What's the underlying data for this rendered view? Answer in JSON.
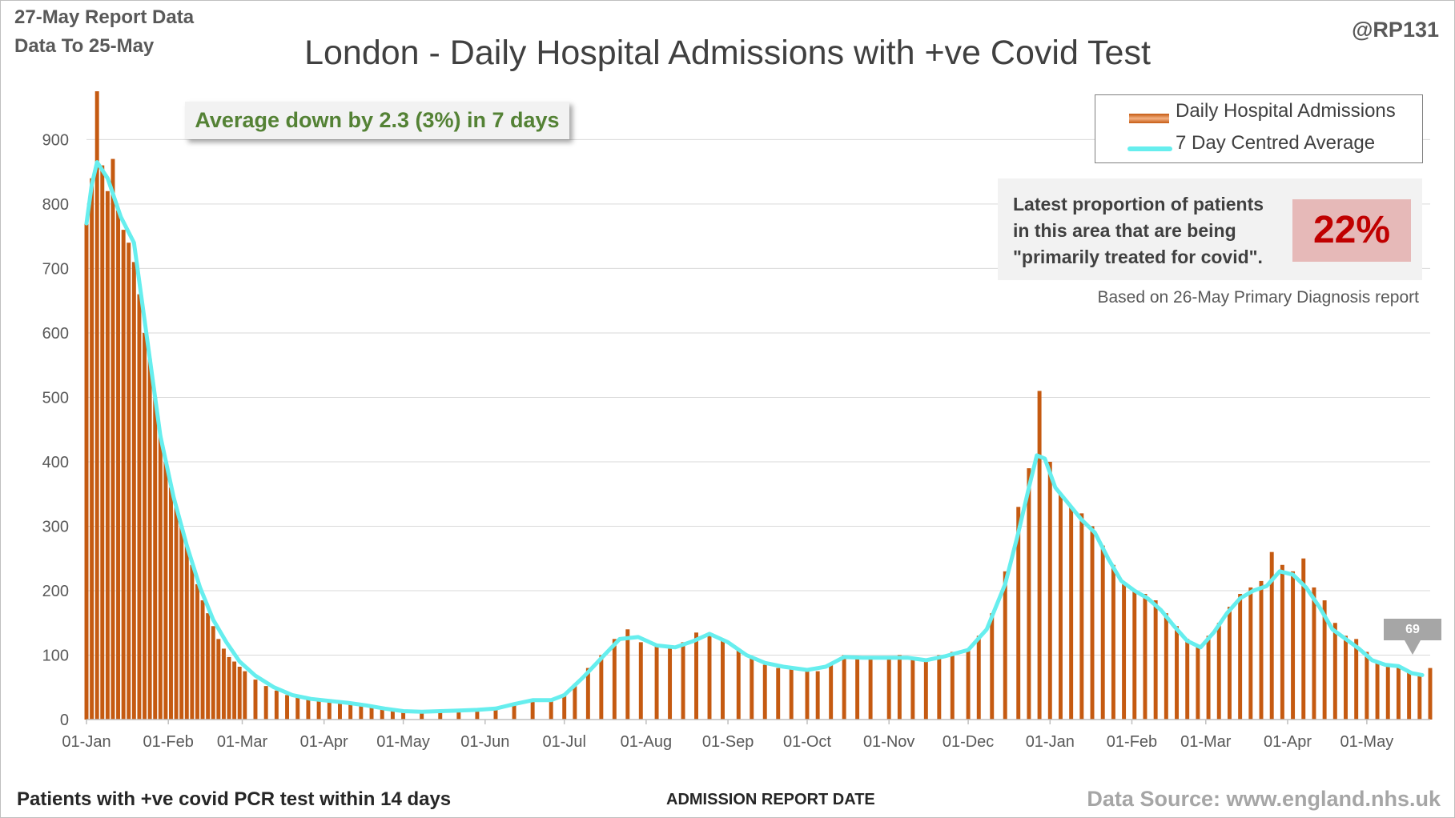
{
  "header": {
    "report_line": "27-May Report Data",
    "data_line": "Data To 25-May",
    "handle": "@RP131"
  },
  "footer": {
    "left": "Patients with +ve covid PCR test within 14 days",
    "middle": "ADMISSION REPORT DATE",
    "right": "Data Source: www.england.nhs.uk"
  },
  "annotations": {
    "avg_change": "Average down by 2.3 (3%) in 7 days",
    "proportion_text": "Latest proportion of patients in this area that are being \"primarily treated for covid\".",
    "proportion_value": "22%",
    "proportion_source": "Based on 26-May Primary Diagnosis report",
    "latest_value": "69"
  },
  "colors": {
    "bar": "#c55a11",
    "bar_highlight": "#f4b183",
    "average_line": "#66eeee",
    "avg_text": "#548235",
    "proportion_text": "#c00000",
    "grid": "#d9d9d9"
  },
  "chart_data": {
    "type": "bar",
    "title": "London - Daily Hospital Admissions with +ve Covid Test",
    "xlabel": "ADMISSION REPORT DATE",
    "ylabel": "",
    "ylim": [
      0,
      980
    ],
    "yticks": [
      0,
      100,
      200,
      300,
      400,
      500,
      600,
      700,
      800,
      900
    ],
    "grid": true,
    "legend_position": "top-right",
    "x_start": "2021-01-01",
    "x_end": "2022-05-25",
    "xtick_labels": [
      {
        "date": "2021-01-01",
        "label": "01-Jan"
      },
      {
        "date": "2021-02-01",
        "label": "01-Feb"
      },
      {
        "date": "2021-03-01",
        "label": "01-Mar"
      },
      {
        "date": "2021-04-01",
        "label": "01-Apr"
      },
      {
        "date": "2021-05-01",
        "label": "01-May"
      },
      {
        "date": "2021-06-01",
        "label": "01-Jun"
      },
      {
        "date": "2021-07-01",
        "label": "01-Jul"
      },
      {
        "date": "2021-08-01",
        "label": "01-Aug"
      },
      {
        "date": "2021-09-01",
        "label": "01-Sep"
      },
      {
        "date": "2021-10-01",
        "label": "01-Oct"
      },
      {
        "date": "2021-11-01",
        "label": "01-Nov"
      },
      {
        "date": "2021-12-01",
        "label": "01-Dec"
      },
      {
        "date": "2022-01-01",
        "label": "01-Jan"
      },
      {
        "date": "2022-02-01",
        "label": "01-Feb"
      },
      {
        "date": "2022-03-01",
        "label": "01-Mar"
      },
      {
        "date": "2022-04-01",
        "label": "01-Apr"
      },
      {
        "date": "2022-05-01",
        "label": "01-May"
      }
    ],
    "series": [
      {
        "name": "Daily Hospital Admissions",
        "kind": "bar",
        "points": [
          [
            "2021-01-01",
            770
          ],
          [
            "2021-01-03",
            840
          ],
          [
            "2021-01-05",
            975
          ],
          [
            "2021-01-07",
            860
          ],
          [
            "2021-01-09",
            820
          ],
          [
            "2021-01-11",
            870
          ],
          [
            "2021-01-13",
            790
          ],
          [
            "2021-01-15",
            760
          ],
          [
            "2021-01-17",
            740
          ],
          [
            "2021-01-19",
            710
          ],
          [
            "2021-01-21",
            660
          ],
          [
            "2021-01-23",
            600
          ],
          [
            "2021-01-25",
            560
          ],
          [
            "2021-01-27",
            500
          ],
          [
            "2021-01-29",
            440
          ],
          [
            "2021-01-31",
            400
          ],
          [
            "2021-02-02",
            360
          ],
          [
            "2021-02-04",
            330
          ],
          [
            "2021-02-06",
            300
          ],
          [
            "2021-02-08",
            270
          ],
          [
            "2021-02-10",
            240
          ],
          [
            "2021-02-12",
            210
          ],
          [
            "2021-02-14",
            185
          ],
          [
            "2021-02-16",
            165
          ],
          [
            "2021-02-18",
            145
          ],
          [
            "2021-02-20",
            125
          ],
          [
            "2021-02-22",
            110
          ],
          [
            "2021-02-24",
            97
          ],
          [
            "2021-02-26",
            90
          ],
          [
            "2021-02-28",
            82
          ],
          [
            "2021-03-02",
            75
          ],
          [
            "2021-03-06",
            62
          ],
          [
            "2021-03-10",
            52
          ],
          [
            "2021-03-14",
            45
          ],
          [
            "2021-03-18",
            38
          ],
          [
            "2021-03-22",
            34
          ],
          [
            "2021-03-26",
            31
          ],
          [
            "2021-03-30",
            29
          ],
          [
            "2021-04-03",
            27
          ],
          [
            "2021-04-07",
            25
          ],
          [
            "2021-04-11",
            23
          ],
          [
            "2021-04-15",
            21
          ],
          [
            "2021-04-19",
            18
          ],
          [
            "2021-04-23",
            17
          ],
          [
            "2021-04-27",
            15
          ],
          [
            "2021-05-01",
            13
          ],
          [
            "2021-05-08",
            12
          ],
          [
            "2021-05-15",
            13
          ],
          [
            "2021-05-22",
            14
          ],
          [
            "2021-05-29",
            15
          ],
          [
            "2021-06-05",
            18
          ],
          [
            "2021-06-12",
            25
          ],
          [
            "2021-06-19",
            30
          ],
          [
            "2021-06-26",
            32
          ],
          [
            "2021-07-01",
            40
          ],
          [
            "2021-07-05",
            55
          ],
          [
            "2021-07-10",
            80
          ],
          [
            "2021-07-15",
            100
          ],
          [
            "2021-07-20",
            125
          ],
          [
            "2021-07-25",
            140
          ],
          [
            "2021-07-30",
            120
          ],
          [
            "2021-08-05",
            115
          ],
          [
            "2021-08-10",
            110
          ],
          [
            "2021-08-15",
            120
          ],
          [
            "2021-08-20",
            135
          ],
          [
            "2021-08-25",
            130
          ],
          [
            "2021-08-30",
            125
          ],
          [
            "2021-09-05",
            110
          ],
          [
            "2021-09-10",
            95
          ],
          [
            "2021-09-15",
            85
          ],
          [
            "2021-09-20",
            80
          ],
          [
            "2021-09-25",
            78
          ],
          [
            "2021-10-01",
            75
          ],
          [
            "2021-10-05",
            75
          ],
          [
            "2021-10-10",
            85
          ],
          [
            "2021-10-15",
            100
          ],
          [
            "2021-10-20",
            98
          ],
          [
            "2021-10-25",
            95
          ],
          [
            "2021-11-01",
            98
          ],
          [
            "2021-11-05",
            100
          ],
          [
            "2021-11-10",
            95
          ],
          [
            "2021-11-15",
            90
          ],
          [
            "2021-11-20",
            100
          ],
          [
            "2021-11-25",
            105
          ],
          [
            "2021-12-01",
            110
          ],
          [
            "2021-12-05",
            130
          ],
          [
            "2021-12-10",
            165
          ],
          [
            "2021-12-15",
            230
          ],
          [
            "2021-12-20",
            330
          ],
          [
            "2021-12-24",
            390
          ],
          [
            "2021-12-28",
            510
          ],
          [
            "2022-01-01",
            400
          ],
          [
            "2022-01-05",
            350
          ],
          [
            "2022-01-09",
            330
          ],
          [
            "2022-01-13",
            320
          ],
          [
            "2022-01-17",
            300
          ],
          [
            "2022-01-21",
            270
          ],
          [
            "2022-01-25",
            240
          ],
          [
            "2022-01-29",
            210
          ],
          [
            "2022-02-02",
            200
          ],
          [
            "2022-02-06",
            195
          ],
          [
            "2022-02-10",
            185
          ],
          [
            "2022-02-14",
            165
          ],
          [
            "2022-02-18",
            145
          ],
          [
            "2022-02-22",
            125
          ],
          [
            "2022-02-26",
            115
          ],
          [
            "2022-03-02",
            130
          ],
          [
            "2022-03-06",
            150
          ],
          [
            "2022-03-10",
            175
          ],
          [
            "2022-03-14",
            195
          ],
          [
            "2022-03-18",
            205
          ],
          [
            "2022-03-22",
            215
          ],
          [
            "2022-03-26",
            260
          ],
          [
            "2022-03-30",
            240
          ],
          [
            "2022-04-03",
            230
          ],
          [
            "2022-04-07",
            250
          ],
          [
            "2022-04-11",
            205
          ],
          [
            "2022-04-15",
            185
          ],
          [
            "2022-04-19",
            150
          ],
          [
            "2022-04-23",
            130
          ],
          [
            "2022-04-27",
            125
          ],
          [
            "2022-05-01",
            105
          ],
          [
            "2022-05-05",
            90
          ],
          [
            "2022-05-09",
            85
          ],
          [
            "2022-05-13",
            82
          ],
          [
            "2022-05-17",
            75
          ],
          [
            "2022-05-21",
            70
          ],
          [
            "2022-05-25",
            80
          ]
        ]
      },
      {
        "name": "7 Day Centred Average",
        "kind": "line",
        "points": [
          [
            "2021-01-01",
            770
          ],
          [
            "2021-01-03",
            830
          ],
          [
            "2021-01-05",
            865
          ],
          [
            "2021-01-09",
            840
          ],
          [
            "2021-01-14",
            780
          ],
          [
            "2021-01-19",
            740
          ],
          [
            "2021-01-24",
            590
          ],
          [
            "2021-01-29",
            440
          ],
          [
            "2021-02-03",
            345
          ],
          [
            "2021-02-08",
            270
          ],
          [
            "2021-02-13",
            205
          ],
          [
            "2021-02-18",
            155
          ],
          [
            "2021-02-23",
            120
          ],
          [
            "2021-02-28",
            90
          ],
          [
            "2021-03-06",
            68
          ],
          [
            "2021-03-13",
            50
          ],
          [
            "2021-03-20",
            38
          ],
          [
            "2021-03-27",
            32
          ],
          [
            "2021-04-03",
            29
          ],
          [
            "2021-04-10",
            26
          ],
          [
            "2021-04-17",
            22
          ],
          [
            "2021-04-24",
            17
          ],
          [
            "2021-05-01",
            13
          ],
          [
            "2021-05-08",
            12
          ],
          [
            "2021-05-15",
            13
          ],
          [
            "2021-05-22",
            14
          ],
          [
            "2021-05-29",
            15
          ],
          [
            "2021-06-05",
            17
          ],
          [
            "2021-06-12",
            24
          ],
          [
            "2021-06-19",
            30
          ],
          [
            "2021-06-26",
            30
          ],
          [
            "2021-07-01",
            38
          ],
          [
            "2021-07-08",
            65
          ],
          [
            "2021-07-15",
            95
          ],
          [
            "2021-07-22",
            125
          ],
          [
            "2021-07-29",
            128
          ],
          [
            "2021-08-05",
            115
          ],
          [
            "2021-08-12",
            112
          ],
          [
            "2021-08-19",
            122
          ],
          [
            "2021-08-25",
            133
          ],
          [
            "2021-09-01",
            120
          ],
          [
            "2021-09-08",
            100
          ],
          [
            "2021-09-15",
            88
          ],
          [
            "2021-09-22",
            82
          ],
          [
            "2021-10-01",
            77
          ],
          [
            "2021-10-08",
            82
          ],
          [
            "2021-10-15",
            97
          ],
          [
            "2021-10-22",
            96
          ],
          [
            "2021-11-01",
            96
          ],
          [
            "2021-11-08",
            96
          ],
          [
            "2021-11-15",
            92
          ],
          [
            "2021-11-22",
            98
          ],
          [
            "2021-12-01",
            108
          ],
          [
            "2021-12-08",
            140
          ],
          [
            "2021-12-15",
            210
          ],
          [
            "2021-12-20",
            290
          ],
          [
            "2021-12-24",
            360
          ],
          [
            "2021-12-27",
            410
          ],
          [
            "2021-12-30",
            405
          ],
          [
            "2022-01-03",
            360
          ],
          [
            "2022-01-08",
            335
          ],
          [
            "2022-01-13",
            310
          ],
          [
            "2022-01-18",
            290
          ],
          [
            "2022-01-23",
            250
          ],
          [
            "2022-01-28",
            215
          ],
          [
            "2022-02-02",
            200
          ],
          [
            "2022-02-07",
            188
          ],
          [
            "2022-02-12",
            170
          ],
          [
            "2022-02-17",
            145
          ],
          [
            "2022-02-22",
            122
          ],
          [
            "2022-02-27",
            112
          ],
          [
            "2022-03-04",
            135
          ],
          [
            "2022-03-09",
            165
          ],
          [
            "2022-03-14",
            188
          ],
          [
            "2022-03-19",
            200
          ],
          [
            "2022-03-24",
            207
          ],
          [
            "2022-03-29",
            230
          ],
          [
            "2022-04-03",
            225
          ],
          [
            "2022-04-08",
            205
          ],
          [
            "2022-04-13",
            175
          ],
          [
            "2022-04-18",
            140
          ],
          [
            "2022-04-23",
            125
          ],
          [
            "2022-04-28",
            110
          ],
          [
            "2022-05-03",
            92
          ],
          [
            "2022-05-08",
            85
          ],
          [
            "2022-05-13",
            83
          ],
          [
            "2022-05-18",
            72
          ],
          [
            "2022-05-22",
            69
          ]
        ]
      }
    ]
  }
}
